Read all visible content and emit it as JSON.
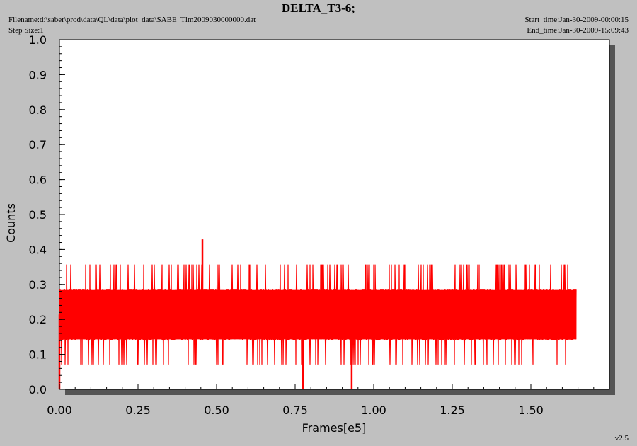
{
  "header": {
    "title": "DELTA_T3-6;",
    "filename": "Filename:d:\\saber\\prod\\data\\QL\\data\\plot_data\\SABE_Tlm2009030000000.dat",
    "step_size": "Step Size:1",
    "start_time": "Start_time:Jan-30-2009-00:00:15",
    "end_time": "End_time:Jan-30-2009-15:09:43",
    "version": "v2.5"
  },
  "colors": {
    "background": "#c0c0c0",
    "plot_area": "#ffffff",
    "shadow": "#555555",
    "series": "#ff0000"
  },
  "chart_data": {
    "type": "line",
    "title": "DELTA_T3-6;",
    "xlabel": "Frames[e5]",
    "ylabel": "Counts",
    "xlim": [
      0.0,
      1.75
    ],
    "ylim": [
      0.0,
      1.0
    ],
    "x_ticks": [
      "0.00",
      "0.25",
      "0.50",
      "0.75",
      "1.00",
      "1.25",
      "1.50"
    ],
    "y_ticks": [
      "0.0",
      "0.1",
      "0.2",
      "0.3",
      "0.4",
      "0.5",
      "0.6",
      "0.7",
      "0.8",
      "0.9",
      "1.0"
    ],
    "grid": false,
    "series": [
      {
        "color": "#ff0000",
        "x_range": [
          0.0,
          1.645
        ],
        "discrete_levels": [
          0.0,
          0.071,
          0.143,
          0.214,
          0.286,
          0.357,
          0.429
        ],
        "typical_band": [
          0.143,
          0.286
        ],
        "spikes": [
          {
            "x": 0.455,
            "y": 0.429
          },
          {
            "x": 0.775,
            "y": 0.0
          },
          {
            "x": 0.93,
            "y": 0.0
          },
          {
            "x": 0.0,
            "y": 0.0
          }
        ]
      }
    ]
  }
}
